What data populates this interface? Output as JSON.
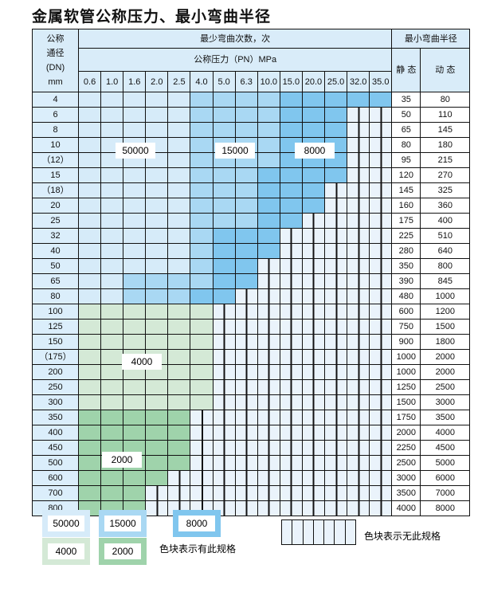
{
  "title": "金属软管公称压力、最小弯曲半径",
  "header": {
    "dn_label": [
      "公称",
      "通径",
      "(DN)",
      "mm"
    ],
    "cycles_label": "最少弯曲次数，次",
    "pressure_label": "公称压力（PN）MPa",
    "radius_label": "最小弯曲半径",
    "static_label": "静 态",
    "dynamic_label": "动 态"
  },
  "pressures": [
    "0.6",
    "1.0",
    "1.6",
    "2.0",
    "2.5",
    "4.0",
    "5.0",
    "6.3",
    "10.0",
    "15.0",
    "20.0",
    "25.0",
    "32.0",
    "35.0"
  ],
  "colors": {
    "a": "#d6ebf9",
    "b": "#a9d8f3",
    "c": "#80c6ee",
    "d": "#d4e9d6",
    "e": "#9fd3ab",
    "x": "#eaf3fb"
  },
  "categories": {
    "a": "50000",
    "b": "15000",
    "c": "8000",
    "d": "4000",
    "e": "2000",
    "x": "无此规格"
  },
  "rows": [
    {
      "dn": "4",
      "cells": "aaaaabbbbccccc",
      "static": "35",
      "dynamic": "80"
    },
    {
      "dn": "6",
      "cells": "aaaaabbbbcccxx",
      "static": "50",
      "dynamic": "110"
    },
    {
      "dn": "8",
      "cells": "aaaaabbbbcccxx",
      "static": "65",
      "dynamic": "145"
    },
    {
      "dn": "10",
      "cells": "aaaaabbbbcccxx",
      "static": "80",
      "dynamic": "180"
    },
    {
      "dn": "（12）",
      "cells": "aaaaabbbbcccxx",
      "static": "95",
      "dynamic": "215"
    },
    {
      "dn": "15",
      "cells": "aaaaabbbccccxx",
      "static": "120",
      "dynamic": "270"
    },
    {
      "dn": "（18）",
      "cells": "aaaaabbbcccxxx",
      "static": "145",
      "dynamic": "325"
    },
    {
      "dn": "20",
      "cells": "aaaaabbbcccxxx",
      "static": "160",
      "dynamic": "360"
    },
    {
      "dn": "25",
      "cells": "aaaaabbbccxxxx",
      "static": "175",
      "dynamic": "400"
    },
    {
      "dn": "32",
      "cells": "aaaaabcccxxxxx",
      "static": "225",
      "dynamic": "510"
    },
    {
      "dn": "40",
      "cells": "aaaaabcccxxxxx",
      "static": "280",
      "dynamic": "640"
    },
    {
      "dn": "50",
      "cells": "aaaaabccxxxxxx",
      "static": "350",
      "dynamic": "800"
    },
    {
      "dn": "65",
      "cells": "aabbbbccxxxxxx",
      "static": "390",
      "dynamic": "845"
    },
    {
      "dn": "80",
      "cells": "aabbbccxxxxxxx",
      "static": "480",
      "dynamic": "1000"
    },
    {
      "dn": "100",
      "cells": "ddddddxxxxxxxx",
      "static": "600",
      "dynamic": "1200"
    },
    {
      "dn": "125",
      "cells": "ddddddxxxxxxxx",
      "static": "750",
      "dynamic": "1500"
    },
    {
      "dn": "150",
      "cells": "ddddddxxxxxxxx",
      "static": "900",
      "dynamic": "1800"
    },
    {
      "dn": "（175）",
      "cells": "ddddddxxxxxxxx",
      "static": "1000",
      "dynamic": "2000"
    },
    {
      "dn": "200",
      "cells": "ddddddxxxxxxxx",
      "static": "1000",
      "dynamic": "2000"
    },
    {
      "dn": "250",
      "cells": "ddddddxxxxxxxx",
      "static": "1250",
      "dynamic": "2500"
    },
    {
      "dn": "300",
      "cells": "ddddddxxxxxxxx",
      "static": "1500",
      "dynamic": "3000"
    },
    {
      "dn": "350",
      "cells": "eeeeexxxxxxxxx",
      "static": "1750",
      "dynamic": "3500"
    },
    {
      "dn": "400",
      "cells": "eeeeexxxxxxxxx",
      "static": "2000",
      "dynamic": "4000"
    },
    {
      "dn": "450",
      "cells": "eeeeexxxxxxxxx",
      "static": "2250",
      "dynamic": "4500"
    },
    {
      "dn": "500",
      "cells": "eeeeexxxxxxxxx",
      "static": "2500",
      "dynamic": "5000"
    },
    {
      "dn": "600",
      "cells": "eeeexxxxxxxxxx",
      "static": "3000",
      "dynamic": "6000"
    },
    {
      "dn": "700",
      "cells": "eeexxxxxxxxxxx",
      "static": "3500",
      "dynamic": "7000"
    },
    {
      "dn": "800",
      "cells": "eeexxxxxxxxxxx",
      "static": "4000",
      "dynamic": "8000"
    }
  ],
  "region_labels": {
    "a": "50000",
    "b": "15000",
    "c": "8000",
    "d": "4000",
    "e": "2000"
  },
  "legend": {
    "a": "50000",
    "b": "15000",
    "c": "8000",
    "d": "4000",
    "e": "2000",
    "has_spec": "色块表示有此规格",
    "no_spec": "色块表示无此规格"
  }
}
